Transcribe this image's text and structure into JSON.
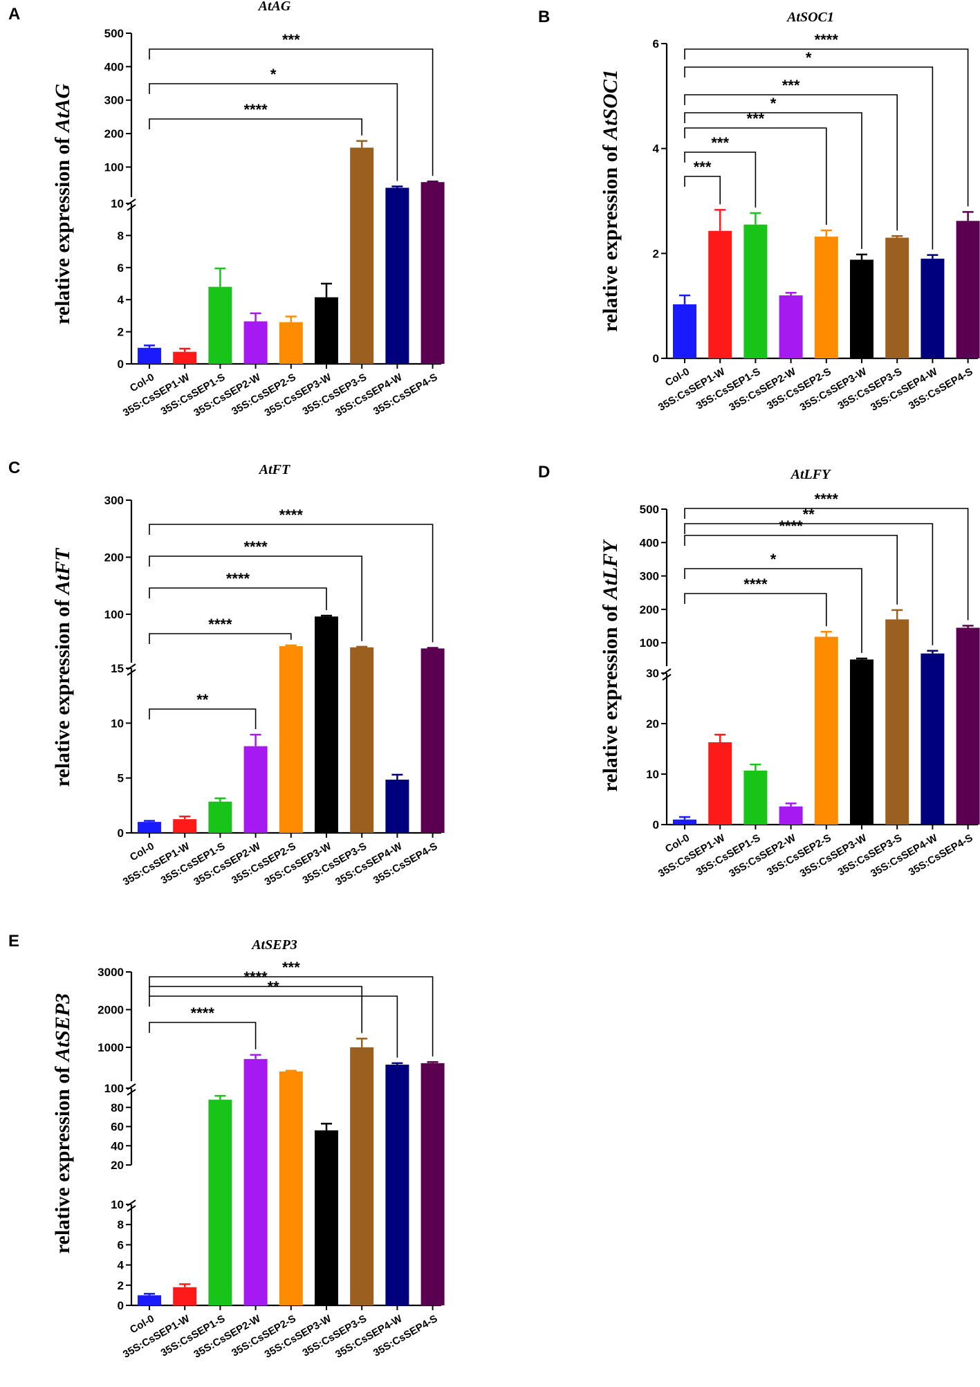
{
  "chart_data": [
    {
      "panel": "A",
      "type": "bar",
      "title": "AtAG",
      "ylabel_prefix": "relative expression of ",
      "ylabel_gene": "AtAG",
      "categories": [
        "Col-0",
        "35S:CsSEP1-W",
        "35S:CsSEP1-S",
        "35S:CsSEP2-W",
        "35S:CsSEP2-S",
        "35S:CsSEP3-W",
        "35S:CsSEP3-S",
        "35S:CsSEP4-W",
        "35S:CsSEP4-S"
      ],
      "values": [
        1.0,
        0.75,
        4.8,
        2.65,
        2.6,
        4.15,
        158,
        38,
        55
      ],
      "errors": [
        0.15,
        0.2,
        1.15,
        0.5,
        0.35,
        0.85,
        20,
        4,
        2
      ],
      "axis_segments": [
        {
          "range": [
            0,
            10
          ],
          "ticks": [
            0,
            2,
            4,
            6,
            8,
            10
          ]
        },
        {
          "range": [
            10,
            500
          ],
          "ticks": [
            100,
            200,
            300,
            400,
            500
          ]
        }
      ],
      "significance": [
        {
          "from": 0,
          "to": 6,
          "label": "****"
        },
        {
          "from": 0,
          "to": 7,
          "label": "*"
        },
        {
          "from": 0,
          "to": 8,
          "label": "***"
        }
      ]
    },
    {
      "panel": "B",
      "type": "bar",
      "title": "AtSOC1",
      "ylabel_prefix": "relative expression of ",
      "ylabel_gene": "AtSOC1",
      "categories": [
        "Col-0",
        "35S:CsSEP1-W",
        "35S:CsSEP1-S",
        "35S:CsSEP2-W",
        "35S:CsSEP2-S",
        "35S:CsSEP3-W",
        "35S:CsSEP3-S",
        "35S:CsSEP4-W",
        "35S:CsSEP4-S"
      ],
      "values": [
        1.03,
        2.43,
        2.55,
        1.2,
        2.32,
        1.88,
        2.3,
        1.9,
        2.62
      ],
      "errors": [
        0.17,
        0.4,
        0.22,
        0.05,
        0.12,
        0.1,
        0.03,
        0.07,
        0.17
      ],
      "axis_segments": [
        {
          "range": [
            0,
            6
          ],
          "ticks": [
            0,
            2,
            4,
            6
          ]
        }
      ],
      "significance": [
        {
          "from": 0,
          "to": 1,
          "label": "***"
        },
        {
          "from": 0,
          "to": 2,
          "label": "***"
        },
        {
          "from": 0,
          "to": 4,
          "label": "***"
        },
        {
          "from": 0,
          "to": 5,
          "label": "*"
        },
        {
          "from": 0,
          "to": 6,
          "label": "***"
        },
        {
          "from": 0,
          "to": 7,
          "label": "*"
        },
        {
          "from": 0,
          "to": 8,
          "label": "****"
        }
      ]
    },
    {
      "panel": "C",
      "type": "bar",
      "title": "AtFT",
      "ylabel_prefix": "relative expression of ",
      "ylabel_gene": "AtFT",
      "categories": [
        "Col-0",
        "35S:CsSEP1-W",
        "35S:CsSEP1-S",
        "35S:CsSEP2-W",
        "35S:CsSEP2-S",
        "35S:CsSEP3-W",
        "35S:CsSEP3-S",
        "35S:CsSEP4-W",
        "35S:CsSEP4-S"
      ],
      "values": [
        1.0,
        1.25,
        2.85,
        7.9,
        44,
        96,
        42,
        4.85,
        40
      ],
      "errors": [
        0.1,
        0.25,
        0.3,
        1.05,
        1.5,
        1.5,
        1,
        0.45,
        1
      ],
      "axis_segments": [
        {
          "range": [
            0,
            15
          ],
          "ticks": [
            0,
            5,
            10,
            15
          ]
        },
        {
          "range": [
            15,
            300
          ],
          "ticks": [
            100,
            200,
            300
          ]
        }
      ],
      "significance": [
        {
          "from": 0,
          "to": 3,
          "label": "**"
        },
        {
          "from": 0,
          "to": 4,
          "label": "****"
        },
        {
          "from": 0,
          "to": 5,
          "label": "****"
        },
        {
          "from": 0,
          "to": 6,
          "label": "****"
        },
        {
          "from": 0,
          "to": 8,
          "label": "****"
        }
      ]
    },
    {
      "panel": "D",
      "type": "bar",
      "title": "AtLFY",
      "ylabel_prefix": "relative expression of ",
      "ylabel_gene": "AtLFY",
      "categories": [
        "Col-0",
        "35S:CsSEP1-W",
        "35S:CsSEP1-S",
        "35S:CsSEP2-W",
        "35S:CsSEP2-S",
        "35S:CsSEP3-W",
        "35S:CsSEP3-S",
        "35S:CsSEP4-W",
        "35S:CsSEP4-S"
      ],
      "values": [
        1.0,
        16.3,
        10.7,
        3.6,
        118,
        50,
        170,
        68,
        145
      ],
      "errors": [
        0.5,
        1.5,
        1.2,
        0.6,
        15,
        3,
        28,
        8,
        6
      ],
      "axis_segments": [
        {
          "range": [
            0,
            30
          ],
          "ticks": [
            0,
            10,
            20,
            30
          ]
        },
        {
          "range": [
            30,
            500
          ],
          "ticks": [
            100,
            200,
            300,
            400,
            500
          ]
        }
      ],
      "significance": [
        {
          "from": 0,
          "to": 4,
          "label": "****"
        },
        {
          "from": 0,
          "to": 5,
          "label": "*"
        },
        {
          "from": 0,
          "to": 6,
          "label": "****"
        },
        {
          "from": 0,
          "to": 7,
          "label": "**"
        },
        {
          "from": 0,
          "to": 8,
          "label": "****"
        }
      ]
    },
    {
      "panel": "E",
      "type": "bar",
      "title": "AtSEP3",
      "ylabel_prefix": "relative expression of ",
      "ylabel_gene": "AtSEP3",
      "categories": [
        "Col-0",
        "35S:CsSEP1-W",
        "35S:CsSEP1-S",
        "35S:CsSEP2-W",
        "35S:CsSEP2-S",
        "35S:CsSEP3-W",
        "35S:CsSEP3-S",
        "35S:CsSEP4-W",
        "35S:CsSEP4-S"
      ],
      "values": [
        1.0,
        1.8,
        88,
        690,
        360,
        56,
        1000,
        540,
        580
      ],
      "errors": [
        0.15,
        0.3,
        4,
        110,
        20,
        7,
        230,
        40,
        30
      ],
      "axis_segments": [
        {
          "range": [
            0,
            10
          ],
          "ticks": [
            0,
            2,
            4,
            6,
            8,
            10
          ]
        },
        {
          "range": [
            20,
            100
          ],
          "ticks": [
            20,
            40,
            60,
            80,
            100
          ]
        },
        {
          "range": [
            100,
            3000
          ],
          "ticks": [
            1000,
            2000,
            3000
          ]
        }
      ],
      "significance": [
        {
          "from": 0,
          "to": 3,
          "label": "****"
        },
        {
          "from": 0,
          "to": 6,
          "label": "****"
        },
        {
          "from": 0,
          "to": 7,
          "label": "**"
        },
        {
          "from": 0,
          "to": 8,
          "label": "***"
        }
      ]
    }
  ],
  "bar_colors": [
    "#1a1aff",
    "#ff1a1a",
    "#19c419",
    "#a51af0",
    "#ff8c00",
    "#000000",
    "#9b6020",
    "#00007f",
    "#5b0050"
  ]
}
